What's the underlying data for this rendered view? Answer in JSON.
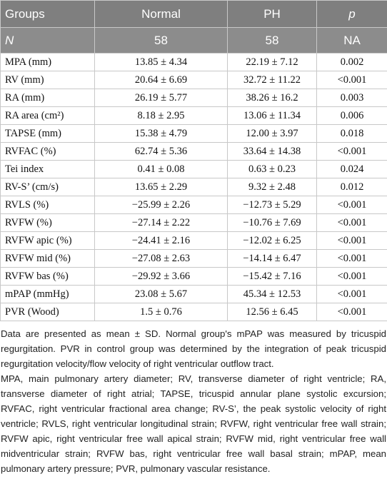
{
  "table": {
    "header": [
      "Groups",
      "Normal",
      "PH",
      "p"
    ],
    "subheader": [
      "N",
      "58",
      "58",
      "NA"
    ],
    "rows": [
      [
        "MPA (mm)",
        "13.85 ± 4.34",
        "22.19 ± 7.12",
        "0.002"
      ],
      [
        "RV (mm)",
        "20.64 ± 6.69",
        "32.72 ± 11.22",
        "<0.001"
      ],
      [
        "RA (mm)",
        "26.19 ± 5.77",
        "38.26 ± 16.2",
        "0.003"
      ],
      [
        "RA area (cm²)",
        "8.18 ± 2.95",
        "13.06 ± 11.34",
        "0.006"
      ],
      [
        "TAPSE (mm)",
        "15.38 ± 4.79",
        "12.00 ± 3.97",
        "0.018"
      ],
      [
        "RVFAC (%)",
        "62.74 ± 5.36",
        "33.64 ± 14.38",
        "<0.001"
      ],
      [
        "Tei index",
        "0.41 ± 0.08",
        "0.63 ± 0.23",
        "0.024"
      ],
      [
        "RV-S’ (cm/s)",
        "13.65 ± 2.29",
        "9.32 ± 2.48",
        "0.012"
      ],
      [
        "RVLS (%)",
        "−25.99 ± 2.26",
        "−12.73 ± 5.29",
        "<0.001"
      ],
      [
        "RVFW (%)",
        "−27.14 ± 2.22",
        "−10.76 ± 7.69",
        "<0.001"
      ],
      [
        "RVFW apic (%)",
        "−24.41 ± 2.16",
        "−12.02 ± 6.25",
        "<0.001"
      ],
      [
        "RVFW mid (%)",
        "−27.08 ± 2.63",
        "−14.14 ± 6.47",
        "<0.001"
      ],
      [
        "RVFW bas (%)",
        "−29.92 ± 3.66",
        "−15.42 ± 7.16",
        "<0.001"
      ],
      [
        "mPAP (mmHg)",
        "23.08 ± 5.67",
        "45.34 ± 12.53",
        "<0.001"
      ],
      [
        "PVR (Wood)",
        "1.5 ± 0.76",
        "12.56 ± 6.45",
        "<0.001"
      ]
    ]
  },
  "notes": [
    "Data are presented as mean ± SD. Normal group's mPAP was measured by tricuspid regurgitation. PVR in control group was determined by the integration of peak tricuspid regurgitation velocity/flow velocity of right ventricular outflow tract.",
    "MPA, main pulmonary artery diameter; RV, transverse diameter of right ventricle; RA, transverse diameter of right atrial; TAPSE, tricuspid annular plane systolic excursion; RVFAC, right ventricular fractional area change; RV-S’, the peak systolic velocity of right ventricle; RVLS, right ventricular longitudinal strain; RVFW, right ventricular free wall strain; RVFW apic, right ventricular free wall apical strain; RVFW mid, right ventricular free wall midventricular strain; RVFW bas, right ventricular free wall basal strain; mPAP, mean pulmonary artery pressure; PVR, pulmonary vascular resistance."
  ]
}
